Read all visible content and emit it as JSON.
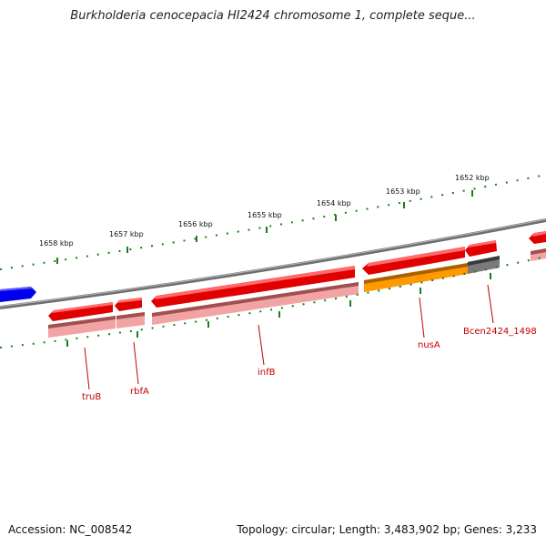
{
  "title": "Burkholderia cenocepacia HI2424 chromosome 1, complete seque...",
  "footer": {
    "accession": "Accession: NC_008542",
    "topology": "Topology: circular; Length: 3,483,902 bp; Genes: 3,233"
  },
  "scale_labels": [
    "1658 kbp",
    "1657 kbp",
    "1656 kbp",
    "1655 kbp",
    "1654 kbp",
    "1653 kbp",
    "1652 kbp"
  ],
  "gene_labels": [
    "truB",
    "rbfA",
    "infB",
    "nusA",
    "Bcen2424_1498"
  ],
  "colors": {
    "gene": "#e00000",
    "gene_shadow": "#ee7f7f",
    "protein": "#f4a0a0",
    "operon": "#ff9900",
    "unknown": "#707070",
    "other_strand": "#0000ee",
    "ruler": "#1a7f1a",
    "backbone": "#808080",
    "label": "#c00000"
  }
}
